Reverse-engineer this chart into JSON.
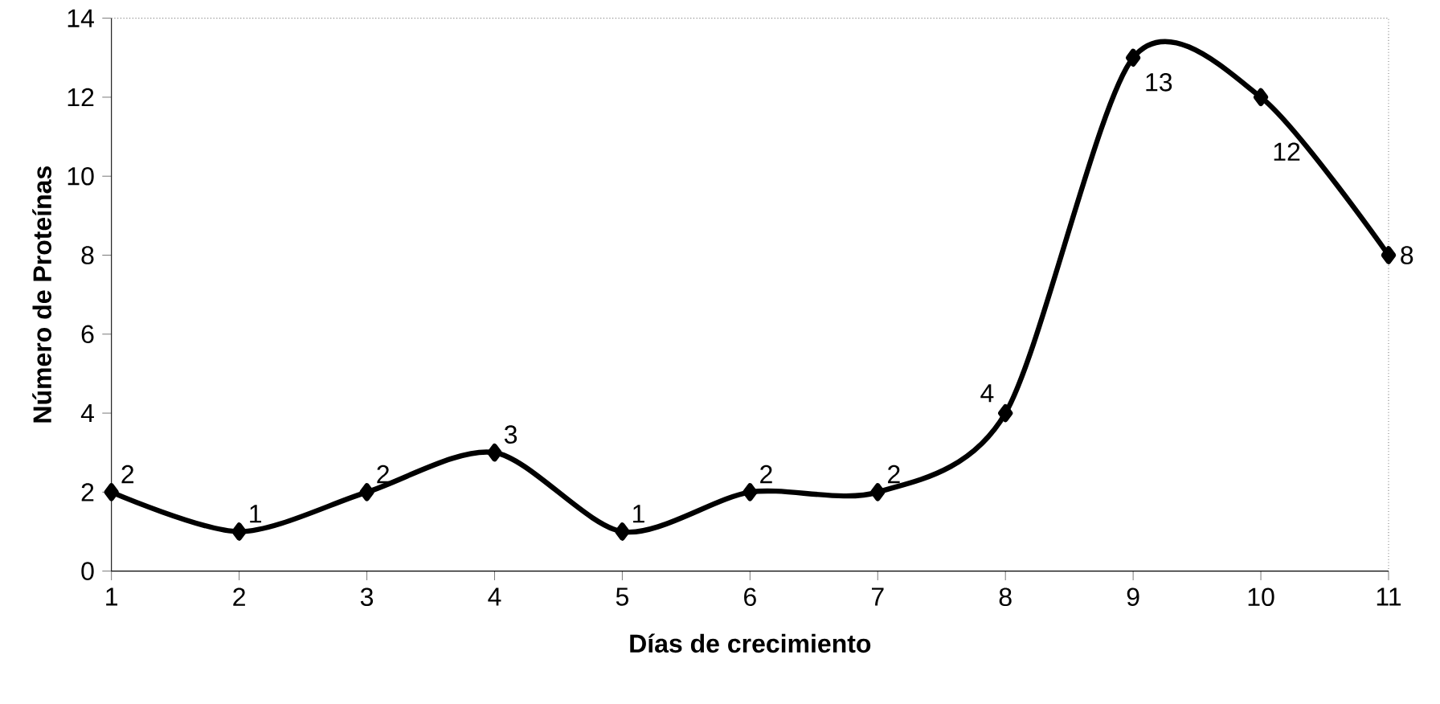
{
  "chart_data": {
    "type": "line",
    "xlabel": "Días de crecimiento",
    "ylabel": "Número de Proteínas",
    "x": [
      1,
      2,
      3,
      4,
      5,
      6,
      7,
      8,
      9,
      10,
      11
    ],
    "values": [
      2,
      1,
      2,
      3,
      1,
      2,
      2,
      4,
      13,
      12,
      8
    ],
    "color": "#000000",
    "marker": "diamond",
    "line_style": "solid",
    "grid": false,
    "data_labels": true,
    "xlim": [
      1,
      11
    ],
    "xticks": [
      1,
      2,
      3,
      4,
      5,
      6,
      7,
      8,
      9,
      10,
      11
    ],
    "ylim": [
      0,
      14
    ],
    "yticks": [
      0,
      2,
      4,
      6,
      8,
      10,
      12,
      14
    ]
  }
}
